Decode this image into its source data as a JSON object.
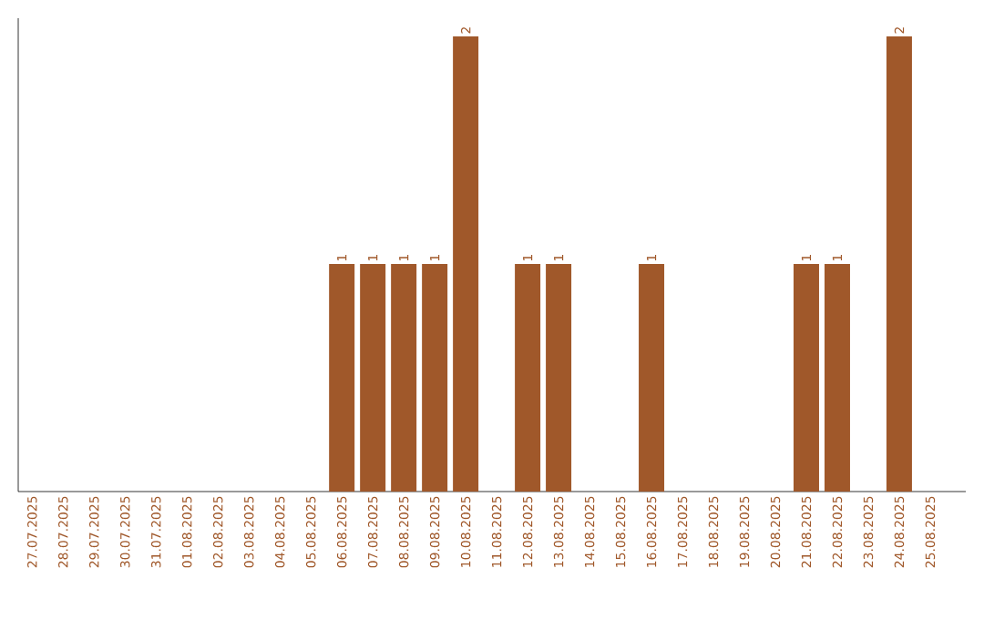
{
  "chart_data": {
    "type": "bar",
    "categories": [
      "27.07.2025",
      "28.07.2025",
      "29.07.2025",
      "30.07.2025",
      "31.07.2025",
      "01.08.2025",
      "02.08.2025",
      "03.08.2025",
      "04.08.2025",
      "05.08.2025",
      "06.08.2025",
      "07.08.2025",
      "08.08.2025",
      "09.08.2025",
      "10.08.2025",
      "11.08.2025",
      "12.08.2025",
      "13.08.2025",
      "14.08.2025",
      "15.08.2025",
      "16.08.2025",
      "17.08.2025",
      "18.08.2025",
      "19.08.2025",
      "20.08.2025",
      "21.08.2025",
      "22.08.2025",
      "23.08.2025",
      "24.08.2025",
      "25.08.2025"
    ],
    "values": [
      0,
      0,
      0,
      0,
      0,
      0,
      0,
      0,
      0,
      0,
      1,
      1,
      1,
      1,
      2,
      0,
      1,
      1,
      0,
      0,
      1,
      0,
      0,
      0,
      0,
      1,
      1,
      0,
      2,
      0
    ],
    "value_labels": [
      null,
      null,
      null,
      null,
      null,
      null,
      null,
      null,
      null,
      null,
      "1",
      "1",
      "1",
      "1",
      "2",
      null,
      "1",
      "1",
      null,
      null,
      "1",
      null,
      null,
      null,
      null,
      "1",
      "1",
      null,
      "2",
      null
    ],
    "color": "#a0582a"
  }
}
